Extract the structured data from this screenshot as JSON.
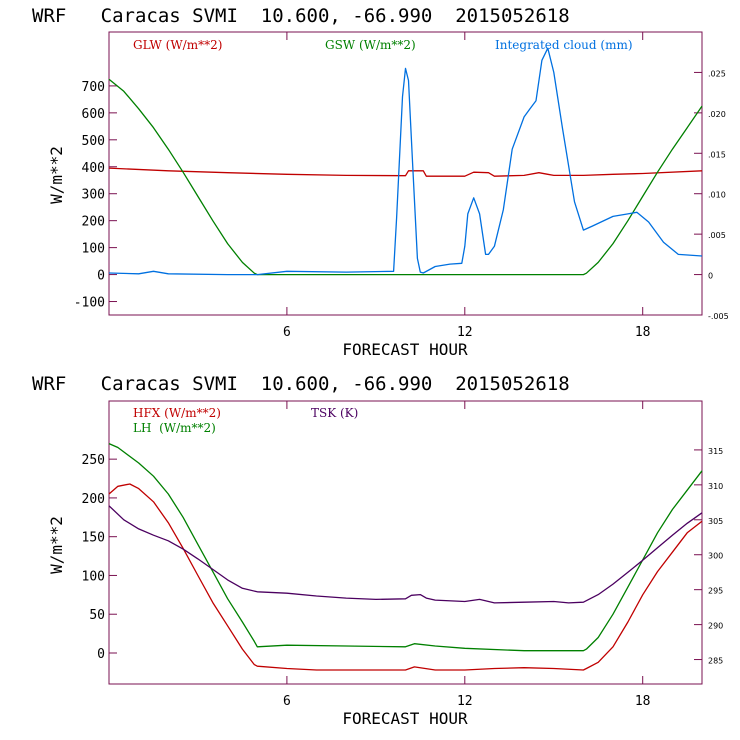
{
  "chart_data": [
    {
      "type": "line",
      "title": "WRF   Caracas SVMI  10.600, -66.990  2015052618",
      "xlabel": "FORECAST HOUR",
      "ylabel": "W/m**2",
      "xlim": [
        0,
        20
      ],
      "ylim": [
        -150,
        900
      ],
      "y2lim": [
        -0.005,
        0.03
      ],
      "xticks": [
        6,
        12,
        18
      ],
      "yticks": [
        -100,
        0,
        100,
        200,
        300,
        400,
        500,
        600,
        700
      ],
      "y2ticks": [
        -0.005,
        0,
        0.005,
        0.01,
        0.015,
        0.02,
        0.025
      ],
      "y2ticklabels": [
        "-.005",
        "0",
        ".005",
        ".010",
        ".015",
        ".020",
        ".025"
      ],
      "series": [
        {
          "name": "GLW (W/m**2)",
          "color": "#c00000",
          "axis": "left",
          "x": [
            0,
            2,
            4,
            6,
            8,
            10,
            10.1,
            10.6,
            10.7,
            12,
            12.3,
            12.8,
            13,
            14,
            14.5,
            14.8,
            15,
            16,
            17,
            18,
            20
          ],
          "y": [
            395,
            385,
            378,
            372,
            368,
            367,
            385,
            385,
            365,
            365,
            380,
            378,
            365,
            368,
            378,
            372,
            368,
            368,
            372,
            375,
            385
          ]
        },
        {
          "name": "GSW (W/m**2)",
          "color": "#008000",
          "axis": "left",
          "x": [
            0,
            0.5,
            1,
            1.5,
            2,
            2.5,
            3,
            3.5,
            4,
            4.5,
            4.9,
            5,
            16,
            16.1,
            16.5,
            17,
            17.5,
            18,
            18.5,
            19,
            19.5,
            20
          ],
          "y": [
            725,
            680,
            615,
            545,
            465,
            380,
            290,
            200,
            115,
            45,
            5,
            0,
            0,
            5,
            45,
            115,
            200,
            290,
            380,
            465,
            545,
            625
          ]
        },
        {
          "name": "Integrated cloud (mm)",
          "color": "#0070e0",
          "axis": "right",
          "x": [
            0,
            1,
            1.5,
            2,
            4,
            5,
            6,
            8,
            9.6,
            9.7,
            9.9,
            10,
            10.1,
            10.25,
            10.4,
            10.5,
            10.6,
            11,
            11.5,
            11.9,
            12,
            12.1,
            12.3,
            12.5,
            12.7,
            12.8,
            13,
            13.3,
            13.6,
            14,
            14.2,
            14.4,
            14.6,
            14.8,
            15,
            15.3,
            15.7,
            16,
            16.3,
            17,
            17.5,
            17.8,
            18.2,
            18.7,
            19.2,
            20
          ],
          "y": [
            0.0002,
            0.0001,
            0.0004,
            0.0001,
            0.0,
            0.0,
            0.0004,
            0.0003,
            0.0004,
            0.007,
            0.022,
            0.0255,
            0.024,
            0.013,
            0.002,
            0.0003,
            0.0002,
            0.001,
            0.0013,
            0.0014,
            0.0035,
            0.0075,
            0.0095,
            0.0075,
            0.0025,
            0.0025,
            0.0035,
            0.008,
            0.0155,
            0.0195,
            0.0205,
            0.0215,
            0.0265,
            0.028,
            0.025,
            0.018,
            0.009,
            0.0055,
            0.006,
            0.0072,
            0.0075,
            0.0077,
            0.0065,
            0.004,
            0.0025,
            0.0023
          ]
        }
      ]
    },
    {
      "type": "line",
      "title": "WRF   Caracas SVMI  10.600, -66.990  2015052618",
      "xlabel": "FORECAST HOUR",
      "ylabel": "W/m**2",
      "xlim": [
        0,
        20
      ],
      "ylim": [
        -40,
        325
      ],
      "y2lim": [
        281.5,
        322
      ],
      "xticks": [
        6,
        12,
        18
      ],
      "yticks": [
        0,
        50,
        100,
        150,
        200,
        250
      ],
      "y2ticks": [
        285,
        290,
        295,
        300,
        305,
        310,
        315
      ],
      "series": [
        {
          "name": "HFX (W/m**2)",
          "color": "#c00000",
          "axis": "left",
          "x": [
            0,
            0.3,
            0.7,
            1,
            1.5,
            2,
            2.5,
            3,
            3.5,
            4,
            4.5,
            4.9,
            5,
            6,
            7,
            8,
            9,
            10,
            10.3,
            11,
            12,
            13,
            14,
            15,
            16,
            16.1,
            16.5,
            17,
            17.5,
            18,
            18.5,
            19,
            19.5,
            20
          ],
          "y": [
            205,
            215,
            218,
            212,
            195,
            168,
            135,
            100,
            65,
            35,
            5,
            -15,
            -17,
            -20,
            -22,
            -22,
            -22,
            -22,
            -18,
            -22,
            -22,
            -20,
            -19,
            -20,
            -22,
            -20,
            -12,
            8,
            40,
            75,
            105,
            130,
            155,
            170
          ]
        },
        {
          "name": "LH  (W/m**2)",
          "color": "#008000",
          "axis": "left",
          "x": [
            0,
            0.3,
            1,
            1.5,
            2,
            2.5,
            3,
            3.5,
            4,
            4.5,
            4.9,
            5,
            6,
            8,
            10,
            10.3,
            11,
            12,
            14,
            16,
            16.1,
            16.5,
            17,
            17.5,
            18,
            18.5,
            19,
            19.5,
            20
          ],
          "y": [
            270,
            265,
            245,
            228,
            205,
            175,
            140,
            105,
            70,
            40,
            15,
            8,
            10,
            9,
            8,
            12,
            9,
            6,
            3,
            3,
            5,
            20,
            50,
            85,
            120,
            155,
            185,
            210,
            235
          ]
        },
        {
          "name": "TSK (K)",
          "color": "#4b0060",
          "axis": "right",
          "x": [
            0,
            0.5,
            1,
            1.5,
            2,
            2.5,
            3,
            3.5,
            4,
            4.5,
            5,
            6,
            7,
            8,
            9,
            10,
            10.2,
            10.5,
            10.7,
            11,
            12,
            12.5,
            13,
            14,
            15,
            15.5,
            16,
            16.5,
            17,
            17.5,
            18,
            18.5,
            19,
            19.5,
            20
          ],
          "y": [
            307,
            305,
            303.7,
            302.8,
            302,
            300.8,
            299.4,
            297.9,
            296.4,
            295.2,
            294.7,
            294.5,
            294.1,
            293.8,
            293.6,
            293.7,
            294.2,
            294.3,
            293.8,
            293.5,
            293.3,
            293.6,
            293.1,
            293.2,
            293.3,
            293.1,
            293.2,
            294.3,
            295.8,
            297.5,
            299.2,
            301,
            302.8,
            304.5,
            306
          ]
        }
      ]
    }
  ]
}
